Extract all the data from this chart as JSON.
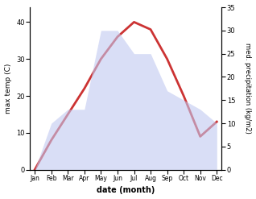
{
  "months": [
    "Jan",
    "Feb",
    "Mar",
    "Apr",
    "May",
    "Jun",
    "Jul",
    "Aug",
    "Sep",
    "Oct",
    "Nov",
    "Dec"
  ],
  "month_indices": [
    0,
    1,
    2,
    3,
    4,
    5,
    6,
    7,
    8,
    9,
    10,
    11
  ],
  "temperature": [
    0,
    8,
    15,
    22,
    30,
    36,
    40,
    38,
    30,
    20,
    9,
    13
  ],
  "precipitation": [
    0,
    10,
    13,
    13,
    30,
    30,
    25,
    25,
    17,
    15,
    13,
    10
  ],
  "temp_color": "#cc3333",
  "precip_color": "#c0c8f0",
  "ylabel_left": "max temp (C)",
  "ylabel_right": "med. precipitation (kg/m2)",
  "xlabel": "date (month)",
  "ylim_left": [
    0,
    44
  ],
  "ylim_right": [
    0,
    35
  ],
  "yticks_left": [
    0,
    10,
    20,
    30,
    40
  ],
  "yticks_right": [
    0,
    5,
    10,
    15,
    20,
    25,
    30,
    35
  ],
  "bg_color": "#ffffff",
  "line_width": 2.0,
  "fill_alpha": 0.6
}
